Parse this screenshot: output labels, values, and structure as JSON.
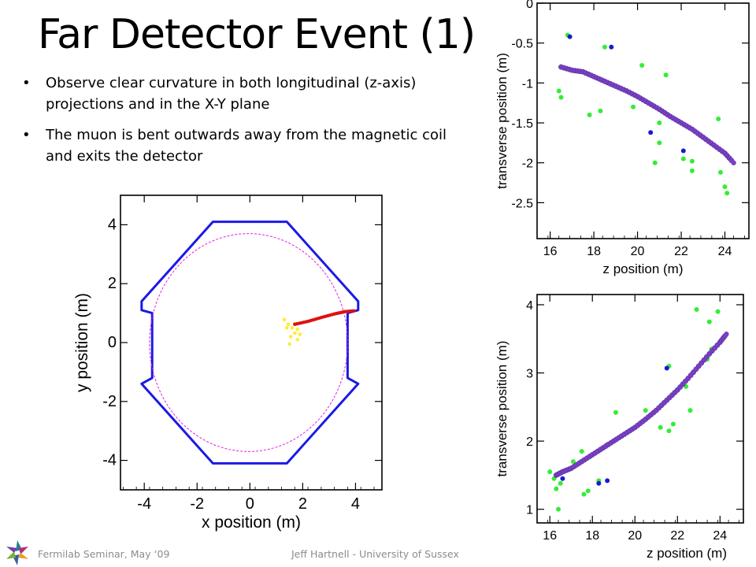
{
  "slide": {
    "title": "Far Detector Event (1)",
    "bullets": [
      "Observe clear curvature in both longitudinal (z-axis) projections and in the X-Y plane",
      "The muon is bent outwards away from the magnetic coil and exits the detector"
    ],
    "bullet_symbol": "•"
  },
  "footer": {
    "left": "Fermilab Seminar, May ‘09",
    "right": "Jeff Hartnell - University of Sussex"
  },
  "colors": {
    "outline": "#1a1ae6",
    "coil_circle": "#e020e0",
    "muon_track": "#dd1111",
    "hits_yellow": "#ffee33",
    "track_hits": "#7a3fc4",
    "green_hits": "#33ee33",
    "blue_hits": "#1a1ad0"
  },
  "chart_data": [
    {
      "type": "scatter",
      "xlabel": "x position (m)",
      "ylabel": "y position (m)",
      "xticks": [
        "-4",
        "-2",
        "0",
        "2",
        "4"
      ],
      "yticks": [
        "4",
        "2",
        "0",
        "-2",
        "-4"
      ],
      "xlim": [
        -4.9,
        5.0
      ],
      "ylim": [
        -5.0,
        5.0
      ],
      "detector_outline": [
        [
          -1.4,
          4.1
        ],
        [
          1.4,
          4.1
        ],
        [
          4.1,
          1.4
        ],
        [
          4.1,
          1.1
        ],
        [
          3.7,
          1.0
        ],
        [
          3.7,
          -1.2
        ],
        [
          4.1,
          -1.4
        ],
        [
          1.4,
          -4.1
        ],
        [
          -1.4,
          -4.1
        ],
        [
          -4.1,
          -1.4
        ],
        [
          -3.7,
          -1.2
        ],
        [
          -3.7,
          1.0
        ],
        [
          -4.1,
          1.1
        ],
        [
          -4.1,
          1.4
        ]
      ],
      "coil_circle": {
        "cx": -0.05,
        "cy": 0.0,
        "rx": 3.75,
        "ry": 3.7
      },
      "muon_track": [
        [
          1.7,
          0.62
        ],
        [
          2.2,
          0.72
        ],
        [
          2.7,
          0.85
        ],
        [
          3.2,
          0.97
        ],
        [
          3.6,
          1.05
        ],
        [
          4.0,
          1.08
        ]
      ],
      "yellow_hits": [
        [
          1.3,
          0.78
        ],
        [
          1.45,
          0.62
        ],
        [
          1.6,
          0.5
        ],
        [
          1.8,
          0.45
        ],
        [
          1.7,
          0.32
        ],
        [
          1.9,
          0.28
        ],
        [
          1.55,
          0.2
        ],
        [
          1.8,
          0.1
        ],
        [
          1.5,
          -0.05
        ],
        [
          1.7,
          0.65
        ],
        [
          1.4,
          0.5
        ]
      ]
    },
    {
      "type": "scatter",
      "xlabel": "z position (m)",
      "ylabel": "transverse position (m)",
      "xticks": [
        "16",
        "18",
        "20",
        "22",
        "24"
      ],
      "yticks": [
        "0",
        "-0.5",
        "-1",
        "-1.5",
        "-2",
        "-2.5"
      ],
      "xlim": [
        15.4,
        25.1
      ],
      "ylim": [
        -2.95,
        0.0
      ],
      "track": [
        [
          16.5,
          -0.8
        ],
        [
          17.0,
          -0.84
        ],
        [
          17.5,
          -0.86
        ],
        [
          18.0,
          -0.92
        ],
        [
          18.5,
          -0.98
        ],
        [
          19.0,
          -1.04
        ],
        [
          19.5,
          -1.1
        ],
        [
          20.0,
          -1.17
        ],
        [
          20.5,
          -1.25
        ],
        [
          21.0,
          -1.33
        ],
        [
          21.5,
          -1.42
        ],
        [
          22.0,
          -1.5
        ],
        [
          22.5,
          -1.58
        ],
        [
          23.0,
          -1.68
        ],
        [
          23.5,
          -1.78
        ],
        [
          24.0,
          -1.88
        ],
        [
          24.4,
          -2.0
        ]
      ],
      "green_hits": [
        [
          16.8,
          -0.4
        ],
        [
          18.5,
          -0.55
        ],
        [
          16.4,
          -1.1
        ],
        [
          16.5,
          -1.18
        ],
        [
          17.8,
          -1.4
        ],
        [
          18.3,
          -1.35
        ],
        [
          20.2,
          -0.78
        ],
        [
          21.3,
          -0.9
        ],
        [
          19.8,
          -1.3
        ],
        [
          21.0,
          -1.5
        ],
        [
          21.0,
          -1.75
        ],
        [
          20.8,
          -2.0
        ],
        [
          22.5,
          -1.98
        ],
        [
          22.5,
          -2.1
        ],
        [
          22.1,
          -1.95
        ],
        [
          23.7,
          -1.45
        ],
        [
          24.0,
          -2.3
        ],
        [
          24.1,
          -2.38
        ],
        [
          23.8,
          -2.12
        ]
      ],
      "blue_hits": [
        [
          16.9,
          -0.42
        ],
        [
          18.8,
          -0.55
        ],
        [
          20.6,
          -1.62
        ],
        [
          22.1,
          -1.85
        ]
      ]
    },
    {
      "type": "scatter",
      "xlabel": "z position (m)",
      "ylabel": "transverse position (m)",
      "xticks": [
        "16",
        "18",
        "20",
        "22",
        "24"
      ],
      "yticks": [
        "4",
        "3",
        "2",
        "1"
      ],
      "xlim": [
        15.4,
        25.1
      ],
      "ylim": [
        0.8,
        4.15
      ],
      "track": [
        [
          16.3,
          1.5
        ],
        [
          16.6,
          1.55
        ],
        [
          17.0,
          1.6
        ],
        [
          17.5,
          1.7
        ],
        [
          18.0,
          1.8
        ],
        [
          18.5,
          1.9
        ],
        [
          19.0,
          2.0
        ],
        [
          19.5,
          2.1
        ],
        [
          20.0,
          2.2
        ],
        [
          20.5,
          2.32
        ],
        [
          21.0,
          2.45
        ],
        [
          21.5,
          2.6
        ],
        [
          22.0,
          2.75
        ],
        [
          22.5,
          2.92
        ],
        [
          23.0,
          3.1
        ],
        [
          23.5,
          3.28
        ],
        [
          24.0,
          3.45
        ],
        [
          24.3,
          3.57
        ]
      ],
      "green_hits": [
        [
          16.0,
          1.55
        ],
        [
          16.2,
          1.45
        ],
        [
          16.3,
          1.3
        ],
        [
          16.4,
          1.0
        ],
        [
          16.5,
          1.38
        ],
        [
          17.1,
          1.7
        ],
        [
          17.5,
          1.85
        ],
        [
          17.6,
          1.22
        ],
        [
          17.8,
          1.27
        ],
        [
          18.3,
          1.42
        ],
        [
          18.7,
          1.95
        ],
        [
          19.1,
          2.42
        ],
        [
          20.5,
          2.45
        ],
        [
          21.2,
          2.2
        ],
        [
          21.6,
          2.15
        ],
        [
          21.8,
          2.25
        ],
        [
          21.6,
          3.1
        ],
        [
          22.4,
          2.8
        ],
        [
          22.6,
          2.45
        ],
        [
          22.9,
          3.93
        ],
        [
          23.5,
          3.75
        ],
        [
          23.9,
          3.9
        ],
        [
          23.4,
          3.2
        ],
        [
          23.6,
          3.35
        ]
      ],
      "blue_hits": [
        [
          16.6,
          1.45
        ],
        [
          18.3,
          1.38
        ],
        [
          18.7,
          1.42
        ],
        [
          21.5,
          3.07
        ]
      ]
    }
  ]
}
